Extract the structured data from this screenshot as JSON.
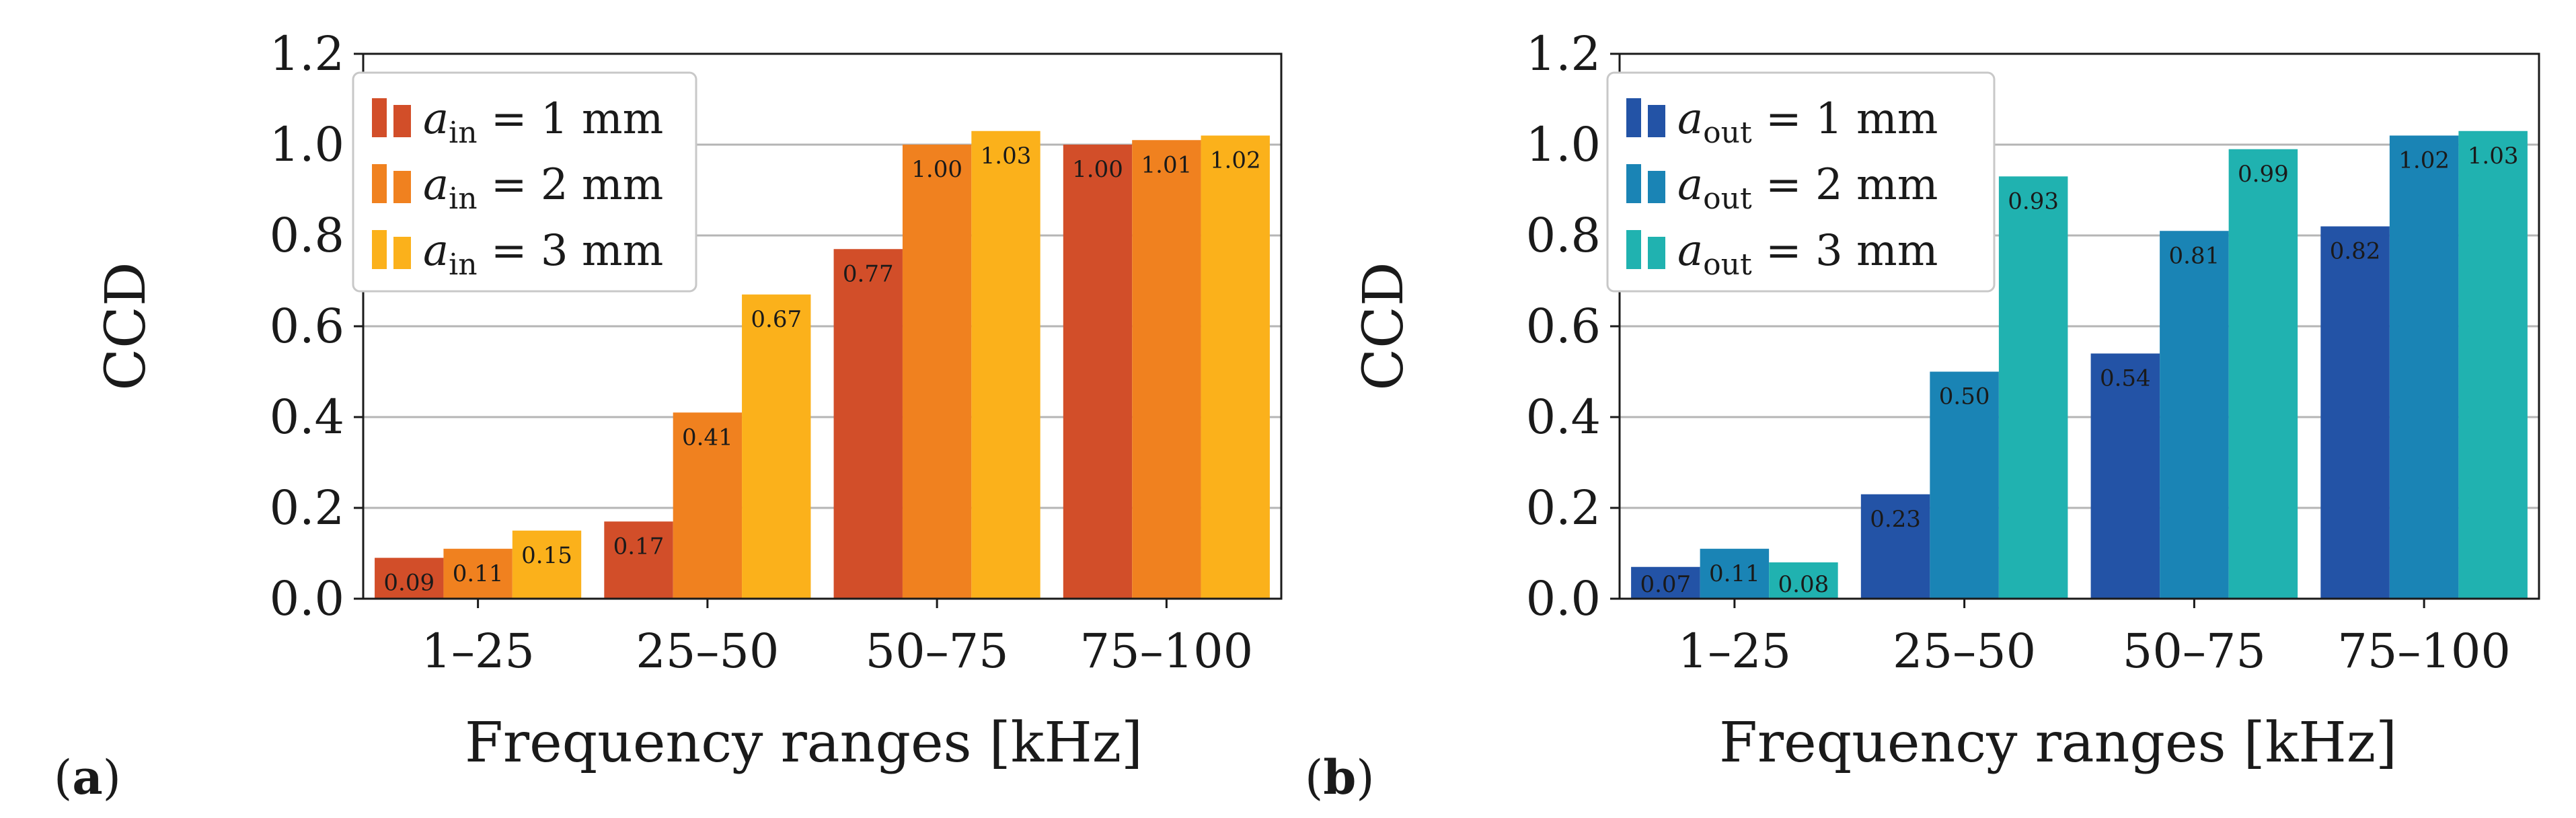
{
  "chart_data": [
    {
      "type": "bar",
      "panel": "a",
      "panel_letter": "a",
      "ylabel": "CCD",
      "xlabel": "Frequency ranges [kHz]",
      "ylim": [
        0,
        1.2
      ],
      "yticks": [
        "0.0",
        "0.2",
        "0.4",
        "0.6",
        "0.8",
        "1.0",
        "1.2"
      ],
      "grid": "horizontal",
      "legend_position": "top-left",
      "categories": [
        "1–25",
        "25–50",
        "50–75",
        "75–100"
      ],
      "series": [
        {
          "name": "a_in = 1 mm",
          "var": "a",
          "sub": "in",
          "eq": " = 1 mm",
          "color": "#d24e29",
          "values": [
            0.09,
            0.17,
            0.77,
            1.0
          ],
          "labels": [
            "0.09",
            "0.17",
            "0.77",
            "1.00"
          ]
        },
        {
          "name": "a_in = 2 mm",
          "var": "a",
          "sub": "in",
          "eq": " = 2 mm",
          "color": "#f0811f",
          "values": [
            0.11,
            0.41,
            1.0,
            1.01
          ],
          "labels": [
            "0.11",
            "0.41",
            "1.00",
            "1.01"
          ]
        },
        {
          "name": "a_in = 3 mm",
          "var": "a",
          "sub": "in",
          "eq": " = 3 mm",
          "color": "#fbb11b",
          "values": [
            0.15,
            0.67,
            1.03,
            1.02
          ],
          "labels": [
            "0.15",
            "0.67",
            "1.03",
            "1.02"
          ]
        }
      ]
    },
    {
      "type": "bar",
      "panel": "b",
      "panel_letter": "b",
      "ylabel": "CCD",
      "xlabel": "Frequency ranges [kHz]",
      "ylim": [
        0,
        1.2
      ],
      "yticks": [
        "0.0",
        "0.2",
        "0.4",
        "0.6",
        "0.8",
        "1.0",
        "1.2"
      ],
      "grid": "horizontal",
      "legend_position": "top-left",
      "categories": [
        "1–25",
        "25–50",
        "50–75",
        "75–100"
      ],
      "series": [
        {
          "name": "a_out = 1 mm",
          "var": "a",
          "sub": "out",
          "eq": " = 1 mm",
          "color": "#2353a6",
          "values": [
            0.07,
            0.23,
            0.54,
            0.82
          ],
          "labels": [
            "0.07",
            "0.23",
            "0.54",
            "0.82"
          ]
        },
        {
          "name": "a_out = 2 mm",
          "var": "a",
          "sub": "out",
          "eq": " = 2 mm",
          "color": "#1a84b5",
          "values": [
            0.11,
            0.5,
            0.81,
            1.02
          ],
          "labels": [
            "0.11",
            "0.50",
            "0.81",
            "1.02"
          ]
        },
        {
          "name": "a_out = 3 mm",
          "var": "a",
          "sub": "out",
          "eq": " = 3 mm",
          "color": "#20b2b0",
          "values": [
            0.08,
            0.93,
            0.99,
            1.03
          ],
          "labels": [
            "0.08",
            "0.93",
            "0.99",
            "1.03"
          ]
        }
      ]
    }
  ]
}
